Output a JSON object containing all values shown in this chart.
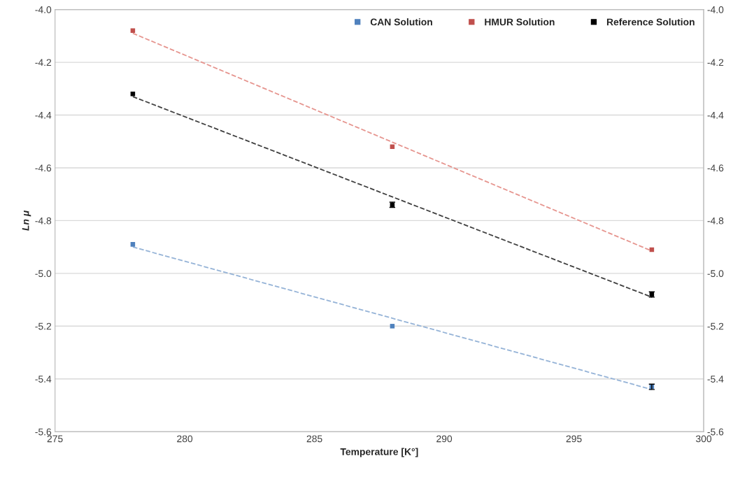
{
  "chart_data": {
    "type": "scatter",
    "xlabel": "Temperature [K°]",
    "ylabel": "Ln μ",
    "xlim": [
      275,
      300
    ],
    "xticks": [
      275,
      280,
      285,
      290,
      295,
      300
    ],
    "ylim": [
      -5.6,
      -4.0
    ],
    "yticks": [
      -5.6,
      -5.4,
      -5.2,
      {
        "value": -5.0,
        "label": "-5.0"
      },
      -4.8,
      -4.6,
      -4.4,
      -4.2,
      {
        "value": -4.0,
        "label": "-4.0"
      }
    ],
    "y2lim": [
      -5.6,
      -4.0
    ],
    "y2ticks": [
      -5.6,
      -5.4,
      -5.2,
      {
        "value": -5.0,
        "label": "-5.0"
      },
      -4.8,
      -4.6,
      -4.4,
      -4.2,
      {
        "value": -4.0,
        "label": "-4.0"
      }
    ],
    "grid": "y",
    "legend": "top right",
    "marker": "square",
    "series": [
      {
        "name": "CAN Solution",
        "color": "#4f81bd",
        "x": [
          278,
          288,
          298
        ],
        "values": [
          -4.89,
          -5.2,
          -5.43
        ],
        "errors": [
          null,
          null,
          0.01
        ]
      },
      {
        "name": "HMUR Solution",
        "color": "#c0504d",
        "x": [
          278,
          288,
          298
        ],
        "values": [
          -4.08,
          -4.52,
          -4.91
        ],
        "errors": [
          null,
          null,
          null
        ]
      },
      {
        "name": "Reference Solution",
        "color": "#000000",
        "x": [
          278,
          288,
          298
        ],
        "values": [
          -4.32,
          -4.74,
          -5.08
        ],
        "errors": [
          null,
          0.01,
          0.01
        ]
      },
      {
        "type": "line",
        "marker": "none",
        "line_style": "dashed",
        "color": "#95b3d7",
        "x": [
          278,
          298
        ],
        "values": [
          -4.9,
          -5.44
        ]
      },
      {
        "type": "line",
        "marker": "none",
        "line_style": "dashed",
        "color": "#e6958f",
        "x": [
          278,
          298
        ],
        "values": [
          -4.09,
          -4.915
        ]
      },
      {
        "type": "line",
        "marker": "none",
        "line_style": "dashed",
        "color": "#404040",
        "x": [
          278,
          298
        ],
        "values": [
          -4.33,
          -5.09
        ]
      }
    ]
  }
}
